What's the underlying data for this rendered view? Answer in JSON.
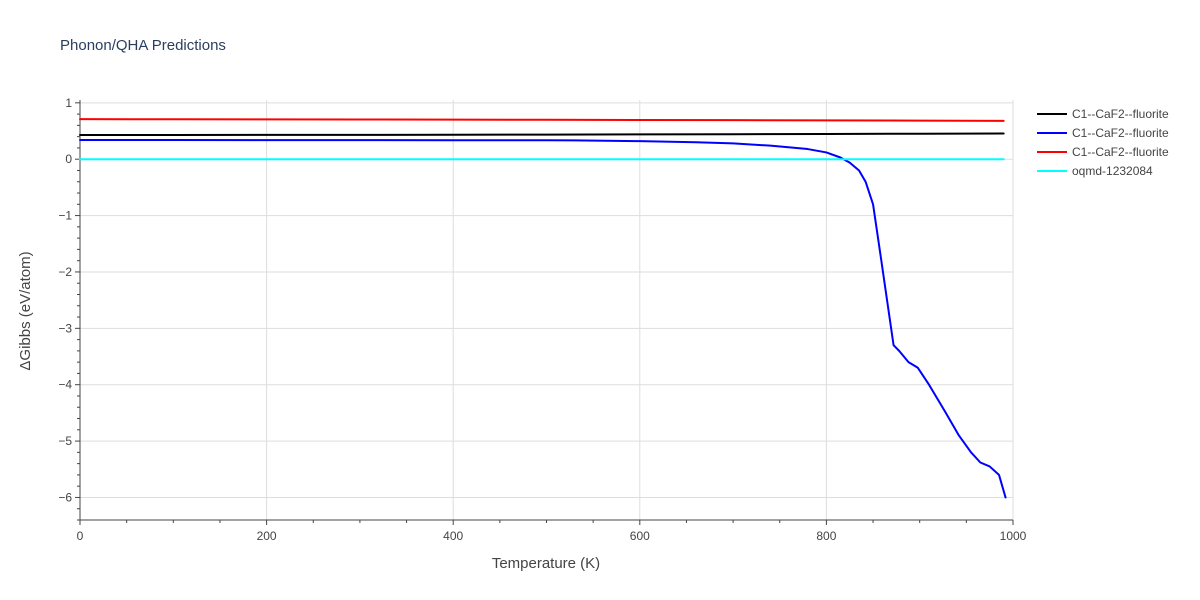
{
  "chart_data": {
    "type": "line",
    "title": "Phonon/QHA Predictions",
    "xlabel": "Temperature (K)",
    "ylabel": "ΔGibbs (eV/atom)",
    "xlim": [
      0,
      1000
    ],
    "ylim": [
      -6.4,
      1.05
    ],
    "x_ticks": [
      0,
      200,
      400,
      600,
      800,
      1000
    ],
    "y_ticks": [
      1,
      0,
      -1,
      -2,
      -3,
      -4,
      -5,
      -6
    ],
    "x_tick_labels": [
      "0",
      "200",
      "400",
      "600",
      "800",
      "1000"
    ],
    "y_tick_labels": [
      "1",
      "0",
      "−1",
      "−2",
      "−3",
      "−4",
      "−5",
      "−6"
    ],
    "grid": true,
    "legend_position": "right",
    "series": [
      {
        "name": "C1--CaF2--fluorite",
        "color": "#000000",
        "x": [
          0,
          100,
          200,
          300,
          400,
          500,
          600,
          700,
          800,
          900,
          990
        ],
        "y": [
          0.43,
          0.43,
          0.431,
          0.432,
          0.434,
          0.436,
          0.44,
          0.443,
          0.447,
          0.452,
          0.456
        ]
      },
      {
        "name": "C1--CaF2--fluorite",
        "color": "#0000ff",
        "x": [
          0,
          100,
          200,
          300,
          400,
          500,
          530,
          600,
          660,
          700,
          740,
          780,
          800,
          815,
          825,
          835,
          842,
          850,
          858,
          865,
          872,
          878,
          888,
          898,
          910,
          928,
          942,
          955,
          965,
          975,
          985,
          992
        ],
        "y": [
          0.34,
          0.34,
          0.339,
          0.338,
          0.337,
          0.335,
          0.333,
          0.32,
          0.3,
          0.28,
          0.24,
          0.18,
          0.12,
          0.03,
          -0.06,
          -0.2,
          -0.4,
          -0.8,
          -1.7,
          -2.5,
          -3.3,
          -3.4,
          -3.6,
          -3.7,
          -4.0,
          -4.5,
          -4.9,
          -5.2,
          -5.38,
          -5.45,
          -5.6,
          -6.0
        ]
      },
      {
        "name": "C1--CaF2--fluorite",
        "color": "#ff0000",
        "x": [
          0,
          100,
          200,
          300,
          400,
          500,
          600,
          700,
          800,
          900,
          990
        ],
        "y": [
          0.71,
          0.709,
          0.707,
          0.705,
          0.702,
          0.699,
          0.696,
          0.692,
          0.688,
          0.684,
          0.68
        ]
      },
      {
        "name": "oqmd-1232084",
        "color": "#00ffff",
        "x": [
          0,
          990
        ],
        "y": [
          0,
          0
        ]
      }
    ]
  }
}
